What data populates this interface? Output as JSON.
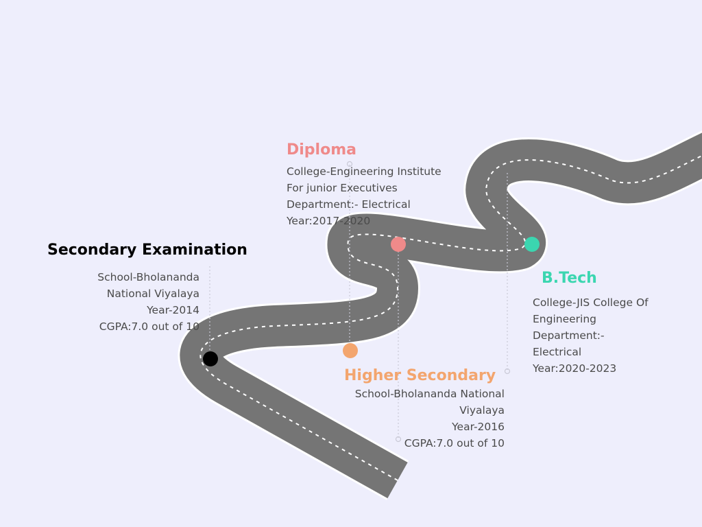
{
  "milestones": [
    {
      "id": "secondary",
      "title": "Secondary Examination",
      "color": "#000000",
      "lines": [
        "School-Bholananda",
        "National Viyalaya",
        "Year-2014",
        "CGPA:7.0 out of 10"
      ]
    },
    {
      "id": "diploma",
      "title": "Diploma",
      "color": "#EF8A8A",
      "lines": [
        "College-Engineering Institute",
        "For junior Executives",
        "Department:- Electrical",
        "Year:2017-2020"
      ]
    },
    {
      "id": "higher-secondary",
      "title": "Higher Secondary",
      "color": "#F3A56E",
      "lines": [
        "School-Bholananda National",
        "Viyalaya",
        "Year-2016",
        "CGPA:7.0 out of 10"
      ]
    },
    {
      "id": "btech",
      "title": "B.Tech",
      "color": "#3BD6B0",
      "lines": [
        "College-JIS College Of",
        "Engineering",
        "Department:-",
        "Electrical",
        "Year:2020-2023"
      ]
    }
  ],
  "colors": {
    "background": "#EEEEFC",
    "road": "#757575",
    "road_edge": "#FFFFFF",
    "lane_marking": "#FFFFFF",
    "connector": "#C9C9D6"
  }
}
